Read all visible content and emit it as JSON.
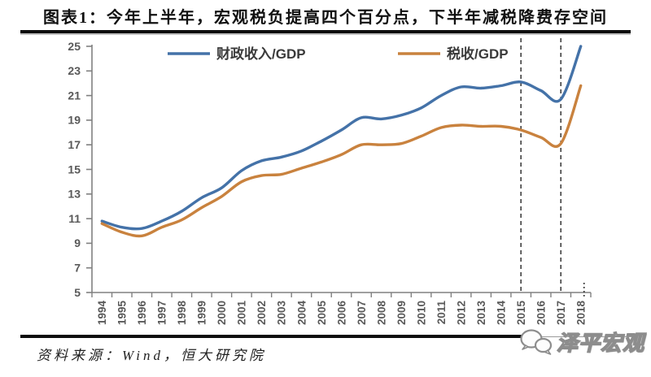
{
  "header": {
    "title": "图表1：今年上半年，宏观税负提高四个百分点，下半年减税降费存空间"
  },
  "chart_data": {
    "type": "line",
    "x": [
      1994,
      1995,
      1996,
      1997,
      1998,
      1999,
      2000,
      2001,
      2002,
      2003,
      2004,
      2005,
      2006,
      2007,
      2008,
      2009,
      2010,
      2011,
      2012,
      2013,
      2014,
      2015,
      2016,
      2017,
      2018
    ],
    "series": [
      {
        "name": "财政收入/GDP",
        "color": "#4472a8",
        "values": [
          10.8,
          10.3,
          10.2,
          10.8,
          11.6,
          12.7,
          13.5,
          14.9,
          15.7,
          16.0,
          16.5,
          17.3,
          18.2,
          19.2,
          19.1,
          19.4,
          20.0,
          21.0,
          21.7,
          21.6,
          21.8,
          22.1,
          21.4,
          20.7,
          25.0
        ]
      },
      {
        "name": "税收/GDP",
        "color": "#c9823e",
        "values": [
          10.6,
          9.9,
          9.6,
          10.3,
          10.9,
          11.9,
          12.8,
          14.0,
          14.5,
          14.6,
          15.1,
          15.6,
          16.2,
          17.0,
          17.0,
          17.1,
          17.7,
          18.4,
          18.6,
          18.5,
          18.5,
          18.2,
          17.6,
          17.1,
          21.8
        ]
      }
    ],
    "title": "",
    "xlabel": "",
    "ylabel": "",
    "ylim": [
      5,
      25
    ],
    "ytick_step": 2,
    "grid": false,
    "legend_position": "top-inside",
    "dashed_vlines": [
      2015,
      2017
    ],
    "last_label_truncated": true,
    "axis_color": "#808080",
    "tick_label_color": "#595959",
    "dashed_line_color": "#404040",
    "legend_text_color": "#3a3a3a"
  },
  "footer": {
    "source": "资料来源：Wind，恒大研究院",
    "logo_text": "泽平宏观",
    "logo_icon": "wechat-bubbles-icon"
  }
}
